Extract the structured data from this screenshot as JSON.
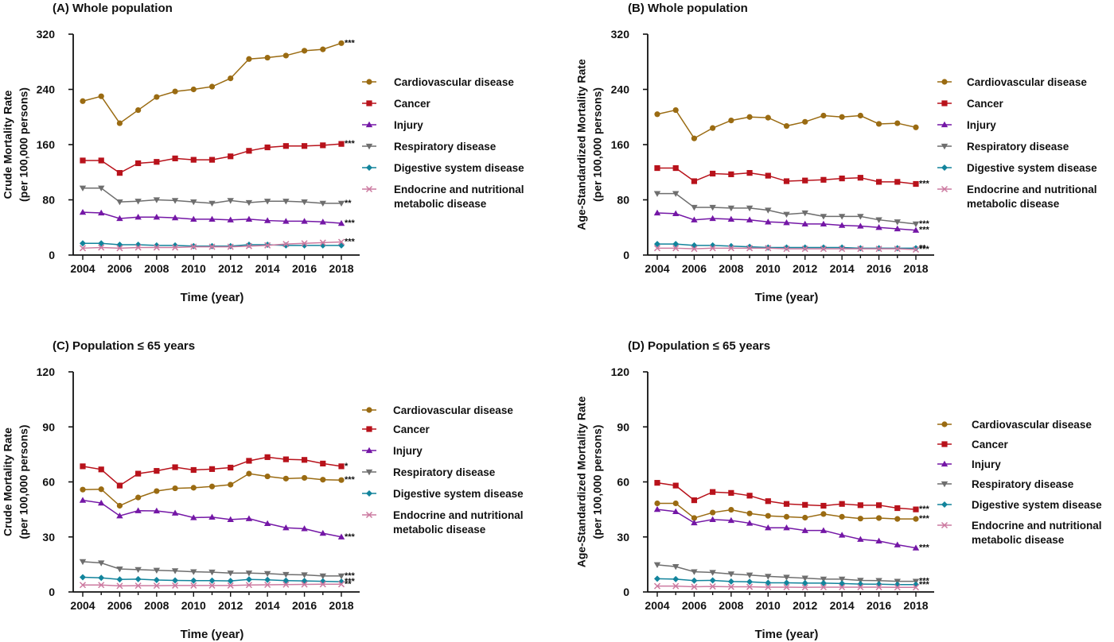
{
  "colors": {
    "cardiovascular": "#9a6b12",
    "cancer": "#b8121b",
    "injury": "#7417a6",
    "respiratory": "#6e6e6e",
    "digestive": "#12849c",
    "endocrine": "#cc7aa0",
    "axis": "#111111"
  },
  "legend_labels": [
    [
      "Cardiovascular disease"
    ],
    [
      "Cancer"
    ],
    [
      "Injury"
    ],
    [
      "Respiratory disease"
    ],
    [
      "Digestive system disease"
    ],
    [
      "Endocrine and nutritional",
      "metabolic disease"
    ]
  ],
  "chart_data": [
    {
      "type": "line",
      "title": "(A)  Whole population",
      "xlabel": "Time (year)",
      "ylabel": [
        "Crude Mortality Rate",
        "(per 100,000 persons)"
      ],
      "ylim": [
        0,
        320
      ],
      "yticks": [
        0,
        80,
        160,
        240,
        320
      ],
      "xticks": [
        2004,
        2006,
        2008,
        2010,
        2012,
        2014,
        2016,
        2018
      ],
      "x": [
        2004,
        2005,
        2006,
        2007,
        2008,
        2009,
        2010,
        2011,
        2012,
        2013,
        2014,
        2015,
        2016,
        2017,
        2018
      ],
      "legend_position": "right",
      "series": [
        {
          "name": "Cardiovascular disease",
          "values": [
            223,
            230,
            191,
            210,
            229,
            237,
            240,
            244,
            256,
            284,
            286,
            289,
            296,
            298,
            307
          ],
          "annotation": "***"
        },
        {
          "name": "Cancer",
          "values": [
            137,
            137,
            119,
            133,
            135,
            140,
            138,
            138,
            143,
            151,
            156,
            158,
            158,
            159,
            161
          ],
          "annotation": "***"
        },
        {
          "name": "Injury",
          "values": [
            62,
            61,
            53,
            55,
            55,
            54,
            52,
            52,
            51,
            52,
            50,
            49,
            49,
            48,
            46
          ],
          "annotation": "***"
        },
        {
          "name": "Respiratory disease",
          "values": [
            97,
            97,
            77,
            78,
            80,
            79,
            77,
            75,
            79,
            76,
            78,
            78,
            77,
            75,
            75
          ],
          "annotation": "**"
        },
        {
          "name": "Digestive system disease",
          "values": [
            17,
            17,
            15,
            15,
            14,
            14,
            13,
            13,
            13,
            15,
            15,
            14,
            14,
            14,
            14
          ],
          "annotation": ""
        },
        {
          "name": "Endocrine and nutritional metabolic disease",
          "values": [
            10,
            11,
            10,
            11,
            11,
            11,
            12,
            12,
            12,
            13,
            14,
            16,
            17,
            18,
            19
          ],
          "annotation": "***"
        }
      ]
    },
    {
      "type": "line",
      "title": "(B)  Whole population",
      "xlabel": "Time (year)",
      "ylabel": [
        "Age-Standardized Mortality Rate",
        "(per 100,000 persons)"
      ],
      "ylim": [
        0,
        320
      ],
      "yticks": [
        0,
        80,
        160,
        240,
        320
      ],
      "xticks": [
        2004,
        2006,
        2008,
        2010,
        2012,
        2014,
        2016,
        2018
      ],
      "x": [
        2004,
        2005,
        2006,
        2007,
        2008,
        2009,
        2010,
        2011,
        2012,
        2013,
        2014,
        2015,
        2016,
        2017,
        2018
      ],
      "legend_position": "right",
      "series": [
        {
          "name": "Cardiovascular disease",
          "values": [
            204,
            210,
            169,
            184,
            195,
            200,
            199,
            187,
            193,
            202,
            200,
            202,
            190,
            191,
            185
          ],
          "annotation": ""
        },
        {
          "name": "Cancer",
          "values": [
            126,
            126,
            107,
            118,
            117,
            119,
            115,
            107,
            108,
            109,
            111,
            112,
            106,
            106,
            103
          ],
          "annotation": "***"
        },
        {
          "name": "Injury",
          "values": [
            61,
            60,
            51,
            53,
            52,
            51,
            48,
            47,
            45,
            45,
            43,
            42,
            40,
            38,
            36
          ],
          "annotation": "***"
        },
        {
          "name": "Respiratory disease",
          "values": [
            89,
            89,
            69,
            69,
            68,
            68,
            65,
            59,
            61,
            56,
            56,
            56,
            51,
            48,
            45
          ],
          "annotation": "***"
        },
        {
          "name": "Digestive system disease",
          "values": [
            16,
            16,
            14,
            14,
            13,
            12,
            11,
            11,
            11,
            11,
            11,
            10,
            10,
            10,
            10
          ],
          "annotation": "**"
        },
        {
          "name": "Endocrine and nutritional metabolic disease",
          "values": [
            10,
            10,
            9,
            10,
            10,
            10,
            10,
            9,
            9,
            9,
            9,
            9,
            9,
            9,
            8
          ],
          "annotation": "***"
        }
      ]
    },
    {
      "type": "line",
      "title": "(C)  Population ≤ 65 years",
      "xlabel": "Time (year)",
      "ylabel": [
        "Crude Mortality Rate",
        "(per 100,000 persons)"
      ],
      "ylim": [
        0,
        120
      ],
      "yticks": [
        0,
        30,
        60,
        90,
        120
      ],
      "xticks": [
        2004,
        2006,
        2008,
        2010,
        2012,
        2014,
        2016,
        2018
      ],
      "x": [
        2004,
        2005,
        2006,
        2007,
        2008,
        2009,
        2010,
        2011,
        2012,
        2013,
        2014,
        2015,
        2016,
        2017,
        2018
      ],
      "legend_position": "right",
      "series": [
        {
          "name": "Cardiovascular disease",
          "values": [
            55.8,
            56,
            47,
            51.5,
            55,
            56.5,
            56.8,
            57.5,
            58.5,
            64.5,
            63,
            61.8,
            62.2,
            61.2,
            61
          ],
          "annotation": "***"
        },
        {
          "name": "Cancer",
          "values": [
            68.5,
            66.8,
            58,
            64.5,
            66,
            68,
            66.5,
            67,
            67.8,
            71.5,
            73.5,
            72.3,
            72,
            70,
            68.5
          ],
          "annotation": "*"
        },
        {
          "name": "Injury",
          "values": [
            50,
            48.5,
            41.5,
            44.3,
            44.2,
            43,
            40.5,
            40.8,
            39.5,
            40,
            37.3,
            35,
            34.5,
            32,
            30
          ],
          "annotation": "***"
        },
        {
          "name": "Respiratory disease",
          "values": [
            16.5,
            15.8,
            12.5,
            12.2,
            11.8,
            11.5,
            11,
            10.8,
            10.3,
            10.3,
            10,
            9.5,
            9.3,
            8.7,
            8.7
          ],
          "annotation": "***"
        },
        {
          "name": "Digestive system disease",
          "values": [
            8,
            7.7,
            6.8,
            7,
            6.5,
            6.3,
            6.2,
            6.2,
            6,
            6.8,
            6.6,
            6.2,
            6,
            5.8,
            5.6
          ],
          "annotation": "***"
        },
        {
          "name": "Endocrine and nutritional metabolic disease",
          "values": [
            3.8,
            3.8,
            3.3,
            3.4,
            3.4,
            3.5,
            3.5,
            3.5,
            3.5,
            3.8,
            3.9,
            4,
            4.1,
            4.2,
            4.2
          ],
          "annotation": "**"
        }
      ]
    },
    {
      "type": "line",
      "title": "(D)  Population ≤ 65 years",
      "xlabel": "Time (year)",
      "ylabel": [
        "Age-Standardized Mortality Rate",
        "(per 100,000 persons)"
      ],
      "ylim": [
        0,
        120
      ],
      "yticks": [
        0,
        30,
        60,
        90,
        120
      ],
      "xticks": [
        2004,
        2006,
        2008,
        2010,
        2012,
        2014,
        2016,
        2018
      ],
      "x": [
        2004,
        2005,
        2006,
        2007,
        2008,
        2009,
        2010,
        2011,
        2012,
        2013,
        2014,
        2015,
        2016,
        2017,
        2018
      ],
      "legend_position": "right",
      "series": [
        {
          "name": "Cardiovascular disease",
          "values": [
            48.3,
            48.3,
            40.3,
            43.3,
            44.8,
            42.8,
            41.5,
            41,
            40.5,
            42.5,
            41,
            40,
            40.3,
            39.8,
            39.8
          ],
          "annotation": "***"
        },
        {
          "name": "Cancer",
          "values": [
            59.5,
            58,
            50,
            54.5,
            54,
            52.5,
            49.5,
            48,
            47.5,
            47,
            48,
            47.3,
            47.3,
            45.7,
            45
          ],
          "annotation": "***"
        },
        {
          "name": "Injury",
          "values": [
            45,
            43.8,
            37.7,
            39.5,
            39,
            37.5,
            35,
            35,
            33.5,
            33.5,
            31,
            28.7,
            27.8,
            25.7,
            24
          ],
          "annotation": "***"
        },
        {
          "name": "Respiratory disease",
          "values": [
            14.8,
            13.8,
            11,
            10.6,
            9.8,
            9.2,
            8.5,
            8,
            7.5,
            7,
            7,
            6.3,
            6.2,
            5.8,
            5.8
          ],
          "annotation": "***"
        },
        {
          "name": "Digestive system disease",
          "values": [
            7.2,
            7,
            6.2,
            6.3,
            5.7,
            5.5,
            5,
            5,
            4.8,
            4.8,
            4.6,
            4.3,
            4.2,
            4,
            4
          ],
          "annotation": "***"
        },
        {
          "name": "Endocrine and nutritional metabolic disease",
          "values": [
            3.2,
            3.2,
            2.8,
            3,
            2.8,
            2.8,
            2.6,
            2.6,
            2.5,
            2.6,
            2.6,
            2.6,
            2.6,
            2.5,
            2.5
          ],
          "annotation": ""
        }
      ]
    }
  ]
}
